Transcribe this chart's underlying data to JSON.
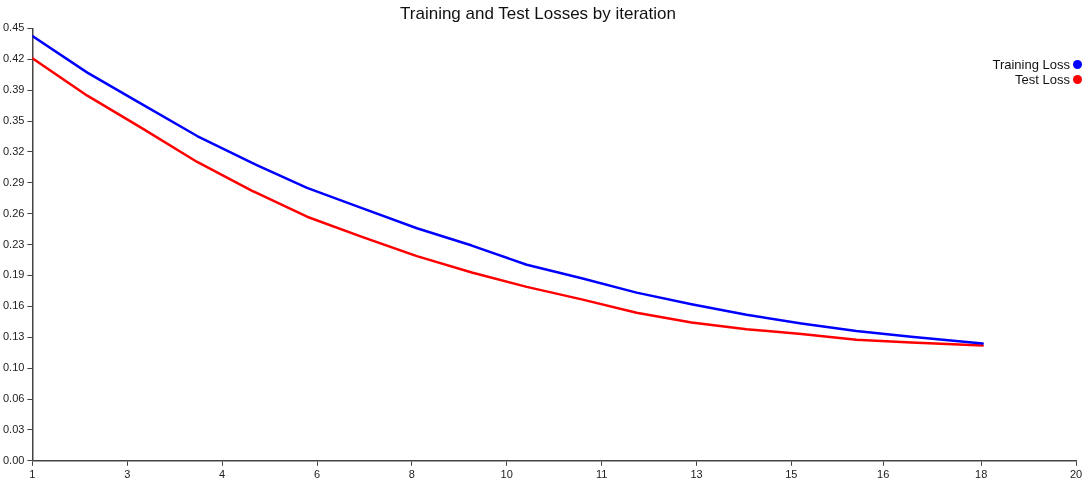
{
  "chart_data": {
    "type": "line",
    "title": "Training and Test Losses by iteration",
    "x": [
      1,
      2,
      3,
      4,
      5,
      6,
      7,
      8,
      9,
      10,
      11,
      12,
      13,
      14,
      15,
      16,
      17,
      18.3
    ],
    "series": [
      {
        "name": "Training Loss",
        "color": "#0000ff",
        "values": [
          0.442,
          0.404,
          0.371,
          0.338,
          0.31,
          0.284,
          0.263,
          0.242,
          0.224,
          0.204,
          0.19,
          0.175,
          0.163,
          0.152,
          0.143,
          0.135,
          0.129,
          0.122
        ]
      },
      {
        "name": "Test Loss",
        "color": "#ff0000",
        "values": [
          0.419,
          0.38,
          0.346,
          0.311,
          0.281,
          0.254,
          0.233,
          0.213,
          0.196,
          0.181,
          0.168,
          0.154,
          0.144,
          0.137,
          0.132,
          0.126,
          0.123,
          0.12
        ]
      }
    ],
    "xlim": [
      1,
      20
    ],
    "xticks": [
      1,
      {
        "value": 2.727,
        "label": "3"
      },
      {
        "value": 4.455,
        "label": "4"
      },
      {
        "value": 6.182,
        "label": "6"
      },
      {
        "value": 7.909,
        "label": "8"
      },
      {
        "value": 9.636,
        "label": "10"
      },
      {
        "value": 11.364,
        "label": "11"
      },
      {
        "value": 13.091,
        "label": "13"
      },
      {
        "value": 14.818,
        "label": "15"
      },
      {
        "value": 16.49,
        "label": "16"
      },
      {
        "value": 18.273,
        "label": "18"
      },
      20
    ],
    "ylim": [
      0,
      0.45
    ],
    "yticks": [
      {
        "value": 0,
        "label": "0.00"
      },
      {
        "value": 0.0321,
        "label": "0.03"
      },
      {
        "value": 0.0643,
        "label": "0.06"
      },
      {
        "value": 0.0964,
        "label": "0.10"
      },
      {
        "value": 0.1286,
        "label": "0.13"
      },
      {
        "value": 0.1607,
        "label": "0.16"
      },
      {
        "value": 0.1929,
        "label": "0.19"
      },
      {
        "value": 0.225,
        "label": "0.23"
      },
      {
        "value": 0.2571,
        "label": "0.26"
      },
      {
        "value": 0.2893,
        "label": "0.29"
      },
      {
        "value": 0.3214,
        "label": "0.32"
      },
      {
        "value": 0.3536,
        "label": "0.35"
      },
      {
        "value": 0.3857,
        "label": "0.39"
      },
      {
        "value": 0.4179,
        "label": "0.42"
      },
      0.45
    ],
    "grid": false,
    "legend": "top right",
    "marker": "none",
    "line_style": "solid"
  }
}
